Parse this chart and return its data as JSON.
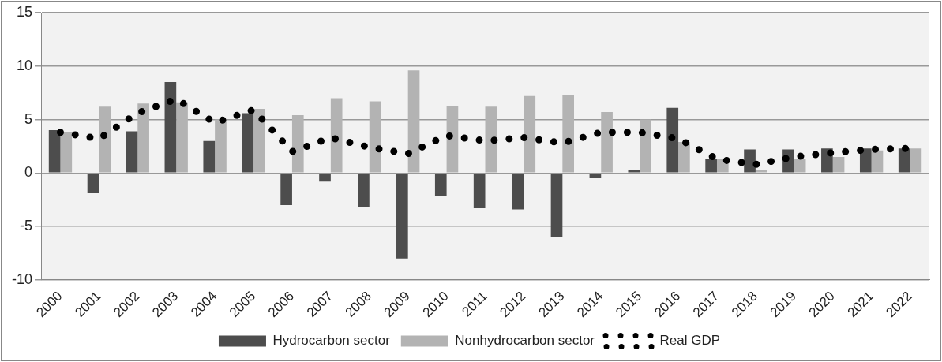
{
  "chart_data": {
    "type": "bar",
    "categories": [
      "2000",
      "2001",
      "2002",
      "2003",
      "2004",
      "2005",
      "2006",
      "2007",
      "2008",
      "2009",
      "2010",
      "2011",
      "2012",
      "2013",
      "2014",
      "2015",
      "2016",
      "2017",
      "2018",
      "2019",
      "2020",
      "2021",
      "2022"
    ],
    "series": [
      {
        "name": "Hydrocarbon sector",
        "color": "#4d4d4d",
        "values": [
          4.0,
          -1.9,
          3.9,
          8.5,
          3.0,
          5.6,
          -3.0,
          -0.8,
          -3.2,
          -8.0,
          -2.2,
          -3.3,
          -3.4,
          -6.0,
          -0.5,
          0.3,
          6.1,
          1.3,
          2.2,
          2.2,
          2.3,
          2.3,
          2.3
        ]
      },
      {
        "name": "Nonhydrocarbon sector",
        "color": "#b3b3b3",
        "values": [
          3.8,
          6.2,
          6.5,
          6.6,
          5.0,
          6.0,
          5.4,
          7.0,
          6.7,
          9.6,
          6.3,
          6.2,
          7.2,
          7.3,
          5.7,
          5.0,
          2.9,
          1.3,
          0.3,
          1.3,
          1.5,
          2.1,
          2.3
        ]
      },
      {
        "name": "Real GDP",
        "type": "line",
        "color": "#000000",
        "line_style": "dotted",
        "marker": "none",
        "values": [
          3.8,
          3.2,
          5.6,
          6.9,
          4.7,
          5.9,
          2.0,
          3.3,
          2.4,
          1.8,
          3.5,
          3.0,
          3.3,
          2.8,
          3.8,
          3.8,
          3.2,
          1.3,
          0.8,
          1.5,
          1.9,
          2.2,
          2.3
        ]
      }
    ],
    "ylim": [
      -10,
      15
    ],
    "yticks": [
      -10,
      -5,
      0,
      5,
      10,
      15
    ],
    "grid": "y",
    "legend": "bottom"
  }
}
